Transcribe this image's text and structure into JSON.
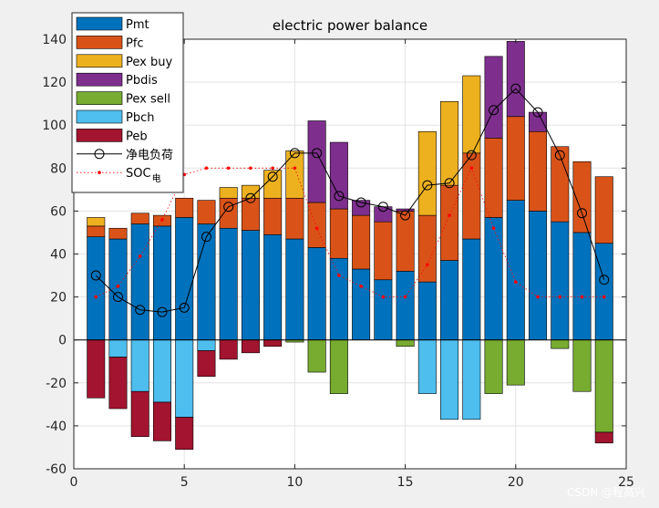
{
  "chart_data": {
    "type": "bar",
    "title": "electric power balance",
    "x": [
      1,
      2,
      3,
      4,
      5,
      6,
      7,
      8,
      9,
      10,
      11,
      12,
      13,
      14,
      15,
      16,
      17,
      18,
      19,
      20,
      21,
      22,
      23,
      24
    ],
    "xlim": [
      0,
      25
    ],
    "ylim": [
      -60,
      140
    ],
    "xticks": [
      0,
      5,
      10,
      15,
      20,
      25
    ],
    "yticks": [
      -60,
      -40,
      -20,
      0,
      20,
      40,
      60,
      80,
      100,
      120,
      140
    ],
    "grid": true,
    "legend_position": "top-left",
    "stack_positive": [
      "Pmt",
      "Pfc",
      "Pex buy",
      "Pbdis"
    ],
    "stack_negative": [
      "Pbch",
      "Pex sell",
      "Peb"
    ],
    "series": [
      {
        "name": "Pmt",
        "color": "#0072BD",
        "values": [
          48,
          47,
          54,
          53,
          57,
          54,
          52,
          51,
          49,
          47,
          43,
          38,
          33,
          28,
          32,
          27,
          37,
          47,
          57,
          65,
          60,
          55,
          50,
          45
        ]
      },
      {
        "name": "Pfc",
        "color": "#D95319",
        "values": [
          5,
          5,
          5,
          5,
          9,
          11,
          14,
          15,
          17,
          19,
          21,
          23,
          25,
          27,
          28,
          31,
          35,
          40,
          37,
          39,
          37,
          35,
          33,
          31
        ]
      },
      {
        "name": "Pex buy",
        "color": "#EDB120",
        "values": [
          4,
          0,
          0,
          0,
          0,
          0,
          5,
          6,
          13,
          22,
          0,
          0,
          0,
          0,
          0,
          39,
          39,
          36,
          0,
          0,
          0,
          0,
          0,
          0
        ]
      },
      {
        "name": "Pbdis",
        "color": "#7E2F8E",
        "values": [
          0,
          0,
          0,
          0,
          0,
          0,
          0,
          0,
          0,
          0,
          38,
          31,
          7,
          7,
          1,
          0,
          0,
          0,
          38,
          35,
          9,
          0,
          0,
          0
        ]
      },
      {
        "name": "Pex sell",
        "color": "#77AC30",
        "values": [
          0,
          0,
          0,
          0,
          0,
          0,
          0,
          0,
          0,
          -1,
          -15,
          -25,
          0,
          0,
          -3,
          0,
          0,
          0,
          -25,
          -21,
          0,
          -4,
          -24,
          -43
        ]
      },
      {
        "name": "Pbch",
        "color": "#4DBEEE",
        "values": [
          0,
          -8,
          -24,
          -29,
          -36,
          -5,
          0,
          0,
          0,
          0,
          0,
          0,
          0,
          0,
          0,
          -25,
          -37,
          -37,
          0,
          0,
          0,
          0,
          0,
          0
        ]
      },
      {
        "name": "Peb",
        "color": "#A2142F",
        "values": [
          -27,
          -24,
          -21,
          -18,
          -15,
          -12,
          -9,
          -6,
          -3,
          0,
          0,
          0,
          0,
          0,
          0,
          0,
          0,
          0,
          0,
          0,
          0,
          0,
          0,
          -5
        ]
      },
      {
        "name": "净电负荷",
        "kind": "line",
        "color": "#000000",
        "values": [
          30,
          20,
          14,
          13,
          15,
          48,
          62,
          66,
          76,
          87,
          87,
          67,
          64,
          62,
          58,
          72,
          73,
          86,
          107,
          117,
          106,
          86,
          59,
          28
        ]
      },
      {
        "name": "SOC",
        "name_sub": "电",
        "kind": "line-dotted",
        "color": "#FF0000",
        "values": [
          20,
          25,
          39,
          56,
          77,
          80,
          80,
          80,
          80,
          80,
          52,
          30,
          25,
          20,
          20,
          35,
          58,
          80,
          52,
          27,
          20,
          20,
          20,
          20
        ]
      }
    ]
  },
  "watermark": "CSDN @程高兴"
}
